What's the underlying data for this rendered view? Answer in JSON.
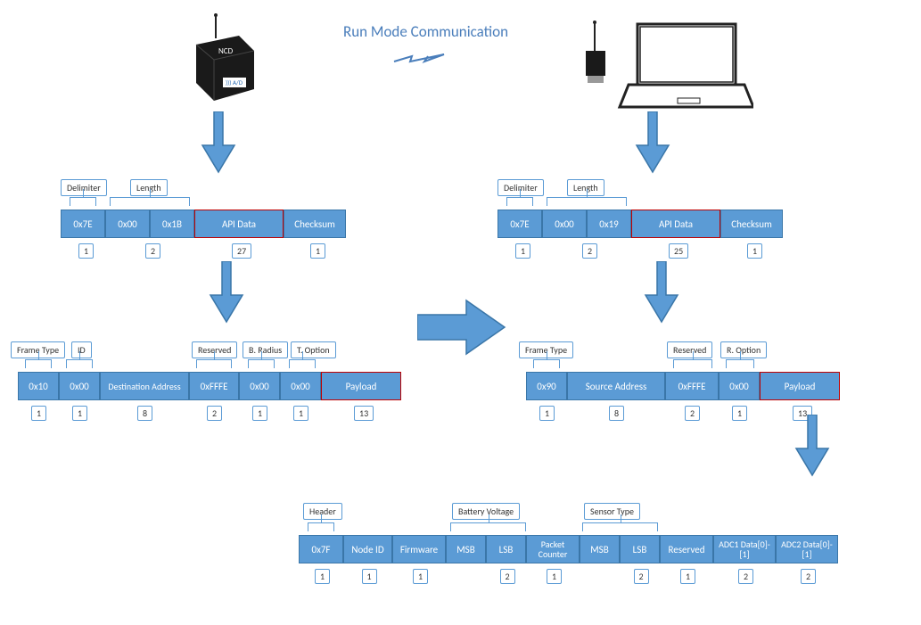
{
  "colors": {
    "accent": "#5b9bd5",
    "accentBorder": "#3a76a8",
    "highlight": "#c00000",
    "title": "#4a7ebb"
  },
  "title": "Run Mode Communication",
  "left_frame": {
    "labels": {
      "delimiter": "Delimiter",
      "length": "Length"
    },
    "cells": [
      "0x7E",
      "0x00",
      "0x1B",
      "API Data",
      "Checksum"
    ],
    "widths": [
      50,
      50,
      50,
      100,
      70
    ],
    "highlight_index": 3,
    "counts": {
      "0": "1",
      "1-2": "2",
      "3": "27",
      "4": "1"
    }
  },
  "left_detail": {
    "labels": {
      "frameType": "Frame Type",
      "id": "ID",
      "reserved": "Reserved",
      "bRadius": "B. Radius",
      "tOption": "T. Option"
    },
    "cells": [
      "0x10",
      "0x00",
      "Destination Address",
      "0xFFFE",
      "0x00",
      "0x00",
      "Payload"
    ],
    "widths": [
      46,
      46,
      100,
      56,
      46,
      46,
      90
    ],
    "highlight_index": 6,
    "counts": [
      "1",
      "1",
      "8",
      "2",
      "1",
      "1",
      "13"
    ]
  },
  "right_frame": {
    "labels": {
      "delimiter": "Delimiter",
      "length": "Length"
    },
    "cells": [
      "0x7E",
      "0x00",
      "0x19",
      "API Data",
      "Checksum"
    ],
    "widths": [
      50,
      50,
      50,
      100,
      70
    ],
    "highlight_index": 3,
    "counts": {
      "0": "1",
      "1-2": "2",
      "3": "25",
      "4": "1"
    }
  },
  "right_detail": {
    "labels": {
      "frameType": "Frame Type",
      "reserved": "Reserved",
      "rOption": "R. Option"
    },
    "cells": [
      "0x90",
      "Source Address",
      "0xFFFE",
      "0x00",
      "Payload"
    ],
    "widths": [
      46,
      110,
      60,
      46,
      90
    ],
    "highlight_index": 4,
    "counts": [
      "1",
      "8",
      "2",
      "1",
      "13"
    ]
  },
  "payload": {
    "labels": {
      "header": "Header",
      "battery": "Battery Voltage",
      "sensor": "Sensor Type"
    },
    "cells": [
      "0x7F",
      "Node ID",
      "Firmware",
      "MSB",
      "LSB",
      "Packet Counter",
      "MSB",
      "LSB",
      "Reserved",
      "ADC1 Data[0]-[1]",
      "ADC2 Data[0]-[1]"
    ],
    "widths": [
      50,
      55,
      60,
      45,
      45,
      60,
      45,
      45,
      60,
      70,
      70
    ],
    "counts": [
      "1",
      "1",
      "1",
      "",
      "2",
      "1",
      "",
      "2",
      "1",
      "2",
      "2"
    ]
  }
}
